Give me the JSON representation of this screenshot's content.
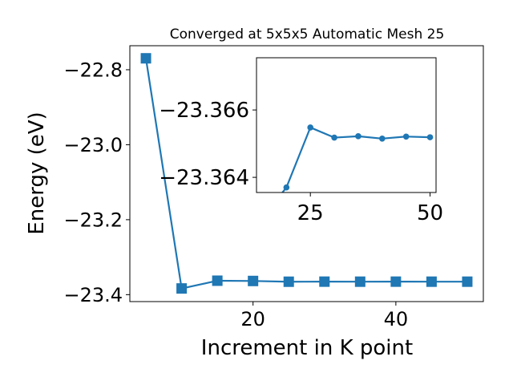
{
  "chart_data": [
    {
      "type": "line",
      "title": "Converged at 5x5x5 Automatic Mesh 25",
      "xlabel": "Increment in K point",
      "ylabel": "Energy (eV)",
      "xlim": [
        2.75,
        52.25
      ],
      "ylim": [
        -23.4185,
        -22.7359
      ],
      "xticks": [
        20,
        40
      ],
      "xtick_labels": [
        "20",
        "40"
      ],
      "yticks": [
        -22.8,
        -23.0,
        -23.2,
        -23.4
      ],
      "ytick_labels": [
        "−22.8",
        "−23.0",
        "−23.2",
        "−23.4"
      ],
      "grid": false,
      "marker": "square",
      "color": "#1f77b4",
      "series": [
        {
          "x": [
            5,
            10,
            15,
            20,
            25,
            30,
            35,
            40,
            45,
            50
          ],
          "y": [
            -22.7695,
            -23.3835,
            -23.3628,
            -23.3635,
            -23.3655,
            -23.3653,
            -23.3654,
            -23.3653,
            -23.3654,
            -23.3654
          ]
        }
      ]
    },
    {
      "type": "line",
      "title": "",
      "xlim": [
        13.75,
        51.25
      ],
      "ylim": [
        -23.36355,
        -23.36755
      ],
      "xticks": [
        25,
        50
      ],
      "xtick_labels": [
        "25",
        "50"
      ],
      "yticks": [
        -23.366,
        -23.364
      ],
      "ytick_labels": [
        "−23.366",
        "−23.364"
      ],
      "grid": false,
      "marker": "circle",
      "color": "#1f77b4",
      "series": [
        {
          "x": [
            15,
            20,
            25,
            30,
            35,
            40,
            45,
            50
          ],
          "y": [
            -23.3628,
            -23.3637,
            -23.36548,
            -23.36518,
            -23.36522,
            -23.36515,
            -23.36521,
            -23.36519
          ]
        }
      ]
    }
  ]
}
